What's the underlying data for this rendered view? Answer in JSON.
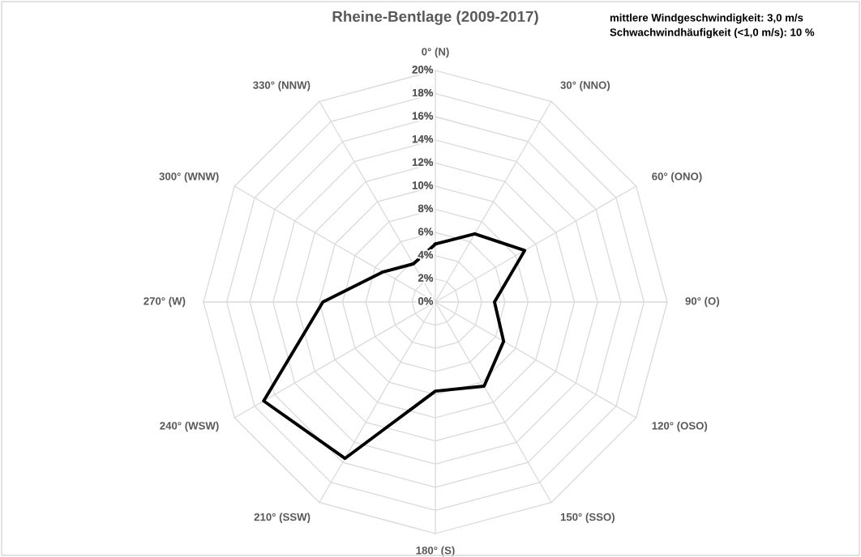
{
  "chart_data": {
    "type": "radar",
    "title": "Rheine-Bentlage (2009-2017)",
    "categories": [
      "0° (N)",
      "30° (NNO)",
      "60° (ONO)",
      "90° (O)",
      "120° (OSO)",
      "150° (SSO)",
      "180° (S)",
      "210° (SSW)",
      "240° (WSW)",
      "270° (W)",
      "300° (WNW)",
      "330° (NNW)"
    ],
    "series": [
      {
        "color": "#000000",
        "values": [
          5.0,
          6.8,
          8.9,
          5.1,
          6.8,
          8.4,
          7.7,
          15.6,
          17.1,
          9.7,
          5.2,
          3.8
        ]
      }
    ],
    "ylim": [
      0,
      20
    ],
    "yticks": [
      {
        "value": 0,
        "label": "0%"
      },
      {
        "value": 2,
        "label": "2%"
      },
      {
        "value": 4,
        "label": "4%"
      },
      {
        "value": 6,
        "label": "6%"
      },
      {
        "value": 8,
        "label": "8%"
      },
      {
        "value": 10,
        "label": "10%"
      },
      {
        "value": 12,
        "label": "12%"
      },
      {
        "value": 14,
        "label": "14%"
      },
      {
        "value": 16,
        "label": "16%"
      },
      {
        "value": 18,
        "label": "18%"
      },
      {
        "value": 20,
        "label": "20%"
      }
    ],
    "grid": true,
    "marker": "none",
    "annotations": [
      "mittlere Windgeschwindigkeit: 3,0 m/s",
      "Schwachwindhäufigkeit (<1,0 m/s): 10 %"
    ]
  }
}
